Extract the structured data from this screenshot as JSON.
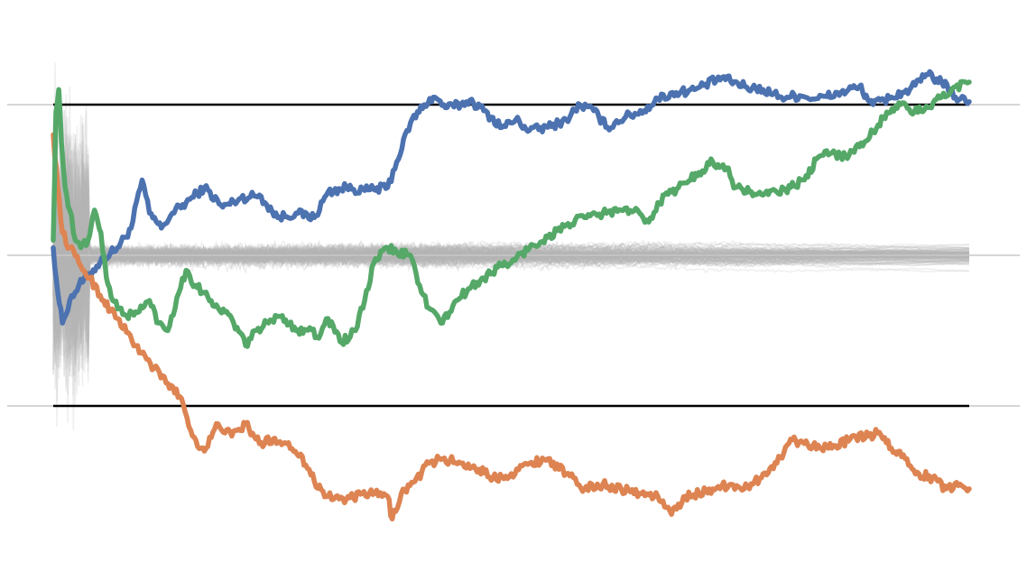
{
  "chart_data": {
    "type": "line",
    "title": "",
    "xlabel": "",
    "ylabel": "",
    "xlim": [
      0,
      1000
    ],
    "ylim": [
      -1.7,
      1.7
    ],
    "grid": false,
    "legend": "none",
    "reference_lines": [
      {
        "y": 1,
        "color": "#000000"
      },
      {
        "y": -1,
        "color": "#000000"
      },
      {
        "y": 0,
        "color": "#c8c8c8"
      }
    ],
    "background_paths": {
      "count": 120,
      "color": "#b8b8b8",
      "opacity": 0.22,
      "seed": 7
    },
    "series": [
      {
        "color": "#4c72b0",
        "points": [
          [
            0,
            0.05
          ],
          [
            5,
            -0.25
          ],
          [
            10,
            -0.45
          ],
          [
            18,
            -0.3
          ],
          [
            28,
            -0.2
          ],
          [
            40,
            -0.12
          ],
          [
            55,
            -0.02
          ],
          [
            70,
            0.05
          ],
          [
            85,
            0.18
          ],
          [
            97,
            0.5
          ],
          [
            105,
            0.28
          ],
          [
            118,
            0.18
          ],
          [
            130,
            0.28
          ],
          [
            145,
            0.35
          ],
          [
            165,
            0.45
          ],
          [
            185,
            0.32
          ],
          [
            205,
            0.38
          ],
          [
            225,
            0.4
          ],
          [
            245,
            0.25
          ],
          [
            265,
            0.28
          ],
          [
            285,
            0.25
          ],
          [
            300,
            0.42
          ],
          [
            320,
            0.45
          ],
          [
            340,
            0.43
          ],
          [
            365,
            0.45
          ],
          [
            375,
            0.62
          ],
          [
            390,
            0.88
          ],
          [
            405,
            1.0
          ],
          [
            415,
            1.05
          ],
          [
            430,
            0.98
          ],
          [
            445,
            1.0
          ],
          [
            455,
            1.03
          ],
          [
            470,
            0.96
          ],
          [
            490,
            0.85
          ],
          [
            505,
            0.9
          ],
          [
            520,
            0.83
          ],
          [
            540,
            0.85
          ],
          [
            560,
            0.9
          ],
          [
            575,
            1.0
          ],
          [
            590,
            0.96
          ],
          [
            605,
            0.85
          ],
          [
            625,
            0.92
          ],
          [
            645,
            0.96
          ],
          [
            660,
            1.04
          ],
          [
            680,
            1.08
          ],
          [
            700,
            1.1
          ],
          [
            730,
            1.18
          ],
          [
            755,
            1.12
          ],
          [
            775,
            1.1
          ],
          [
            795,
            1.05
          ],
          [
            815,
            1.06
          ],
          [
            835,
            1.04
          ],
          [
            860,
            1.08
          ],
          [
            880,
            1.12
          ],
          [
            895,
            1.0
          ],
          [
            915,
            1.05
          ],
          [
            935,
            1.1
          ],
          [
            955,
            1.2
          ],
          [
            970,
            1.15
          ],
          [
            985,
            1.05
          ],
          [
            1000,
            1.02
          ]
        ]
      },
      {
        "color": "#dd8452",
        "points": [
          [
            0,
            0.8
          ],
          [
            5,
            0.45
          ],
          [
            10,
            0.15
          ],
          [
            18,
            0.05
          ],
          [
            28,
            -0.05
          ],
          [
            40,
            -0.15
          ],
          [
            55,
            -0.3
          ],
          [
            70,
            -0.42
          ],
          [
            90,
            -0.6
          ],
          [
            110,
            -0.75
          ],
          [
            125,
            -0.85
          ],
          [
            140,
            -0.95
          ],
          [
            152,
            -1.2
          ],
          [
            165,
            -1.3
          ],
          [
            180,
            -1.12
          ],
          [
            195,
            -1.2
          ],
          [
            210,
            -1.12
          ],
          [
            225,
            -1.25
          ],
          [
            240,
            -1.22
          ],
          [
            255,
            -1.25
          ],
          [
            270,
            -1.32
          ],
          [
            285,
            -1.5
          ],
          [
            300,
            -1.6
          ],
          [
            320,
            -1.62
          ],
          [
            345,
            -1.58
          ],
          [
            365,
            -1.6
          ],
          [
            370,
            -1.75
          ],
          [
            380,
            -1.58
          ],
          [
            395,
            -1.5
          ],
          [
            410,
            -1.38
          ],
          [
            425,
            -1.35
          ],
          [
            445,
            -1.38
          ],
          [
            465,
            -1.42
          ],
          [
            480,
            -1.48
          ],
          [
            500,
            -1.45
          ],
          [
            520,
            -1.38
          ],
          [
            540,
            -1.35
          ],
          [
            560,
            -1.45
          ],
          [
            580,
            -1.55
          ],
          [
            600,
            -1.52
          ],
          [
            620,
            -1.55
          ],
          [
            640,
            -1.58
          ],
          [
            660,
            -1.6
          ],
          [
            675,
            -1.72
          ],
          [
            690,
            -1.6
          ],
          [
            705,
            -1.58
          ],
          [
            720,
            -1.55
          ],
          [
            740,
            -1.52
          ],
          [
            760,
            -1.55
          ],
          [
            775,
            -1.45
          ],
          [
            790,
            -1.38
          ],
          [
            805,
            -1.22
          ],
          [
            820,
            -1.25
          ],
          [
            835,
            -1.26
          ],
          [
            850,
            -1.28
          ],
          [
            870,
            -1.22
          ],
          [
            890,
            -1.2
          ],
          [
            900,
            -1.18
          ],
          [
            915,
            -1.28
          ],
          [
            930,
            -1.35
          ],
          [
            945,
            -1.45
          ],
          [
            960,
            -1.48
          ],
          [
            975,
            -1.55
          ],
          [
            990,
            -1.52
          ],
          [
            1000,
            -1.55
          ]
        ]
      },
      {
        "color": "#55a868",
        "points": [
          [
            0,
            0.1
          ],
          [
            3,
            0.95
          ],
          [
            6,
            1.1
          ],
          [
            9,
            0.75
          ],
          [
            13,
            0.45
          ],
          [
            18,
            0.3
          ],
          [
            24,
            0.1
          ],
          [
            30,
            0.05
          ],
          [
            38,
            0.1
          ],
          [
            45,
            0.3
          ],
          [
            52,
            0.15
          ],
          [
            58,
            -0.15
          ],
          [
            65,
            -0.3
          ],
          [
            72,
            -0.35
          ],
          [
            80,
            -0.4
          ],
          [
            92,
            -0.38
          ],
          [
            105,
            -0.3
          ],
          [
            115,
            -0.45
          ],
          [
            125,
            -0.5
          ],
          [
            135,
            -0.28
          ],
          [
            145,
            -0.1
          ],
          [
            155,
            -0.2
          ],
          [
            165,
            -0.25
          ],
          [
            180,
            -0.35
          ],
          [
            195,
            -0.42
          ],
          [
            210,
            -0.6
          ],
          [
            220,
            -0.5
          ],
          [
            235,
            -0.45
          ],
          [
            250,
            -0.4
          ],
          [
            265,
            -0.5
          ],
          [
            280,
            -0.48
          ],
          [
            290,
            -0.55
          ],
          [
            300,
            -0.42
          ],
          [
            315,
            -0.58
          ],
          [
            330,
            -0.5
          ],
          [
            340,
            -0.3
          ],
          [
            350,
            -0.05
          ],
          [
            365,
            0.05
          ],
          [
            375,
            0.02
          ],
          [
            390,
            0.0
          ],
          [
            400,
            -0.2
          ],
          [
            410,
            -0.35
          ],
          [
            425,
            -0.45
          ],
          [
            440,
            -0.3
          ],
          [
            455,
            -0.22
          ],
          [
            470,
            -0.15
          ],
          [
            485,
            -0.08
          ],
          [
            500,
            -0.05
          ],
          [
            520,
            0.05
          ],
          [
            540,
            0.12
          ],
          [
            560,
            0.2
          ],
          [
            580,
            0.25
          ],
          [
            600,
            0.28
          ],
          [
            620,
            0.3
          ],
          [
            640,
            0.28
          ],
          [
            650,
            0.22
          ],
          [
            660,
            0.35
          ],
          [
            675,
            0.42
          ],
          [
            690,
            0.48
          ],
          [
            705,
            0.55
          ],
          [
            720,
            0.62
          ],
          [
            735,
            0.58
          ],
          [
            745,
            0.45
          ],
          [
            760,
            0.42
          ],
          [
            775,
            0.4
          ],
          [
            790,
            0.42
          ],
          [
            805,
            0.45
          ],
          [
            820,
            0.5
          ],
          [
            835,
            0.65
          ],
          [
            850,
            0.68
          ],
          [
            865,
            0.66
          ],
          [
            880,
            0.72
          ],
          [
            895,
            0.82
          ],
          [
            910,
            0.95
          ],
          [
            925,
            1.0
          ],
          [
            940,
            0.95
          ],
          [
            955,
            0.98
          ],
          [
            970,
            1.05
          ],
          [
            985,
            1.12
          ],
          [
            1000,
            1.15
          ]
        ]
      }
    ]
  }
}
